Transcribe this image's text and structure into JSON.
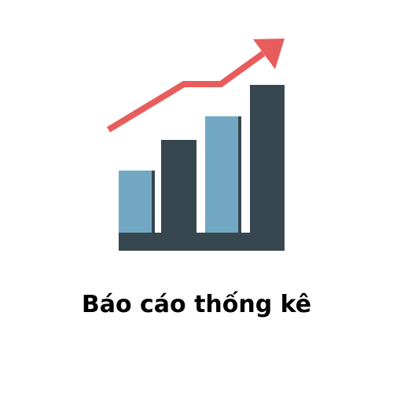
{
  "caption": "Báo cáo thống kê",
  "icon": {
    "name": "bar-chart-growth-icon",
    "colors": {
      "light_bar": "#72A8C4",
      "dark_bar": "#36474F",
      "light_bar_shade": "#36474F",
      "base": "#36474F",
      "arrow": "#E85C5C",
      "background": "#FFFFFF"
    }
  }
}
